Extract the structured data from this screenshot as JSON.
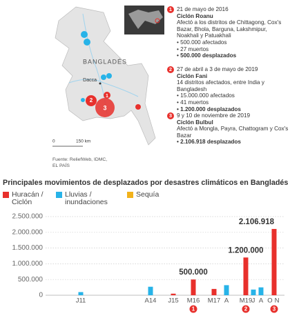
{
  "map": {
    "country_label": "BANGLADÉS",
    "city_label": "Dacca",
    "scale_zero": "0",
    "scale_label": "150 km",
    "source": "Fuente: ReliefWeb, IDMC, EL PAÍS"
  },
  "events": [
    {
      "number": "1",
      "date": "21 de mayo de 2016",
      "name": "Ciclón Roanu",
      "description": "Afectó a los distritos de Chittagong, Cox's Bazar, Bhola, Barguna, Lakshmipur, Noakhali y Patuakhali",
      "bullets": [
        "• 500.000 afectados",
        "• 27 muertos"
      ],
      "displaced": "• 500.000 desplazados"
    },
    {
      "number": "2",
      "date": "27 de abril a 3 de mayo de 2019",
      "name": "Ciclón Fani",
      "description": "14 distritos afectados, entre India y Bangladesh",
      "bullets": [
        "• 15.000.000 afectados",
        "• 41 muertos"
      ],
      "displaced": "• 1.200.000 desplazados"
    },
    {
      "number": "3",
      "date": "9 y 10 de noviembre de 2019",
      "name": "Ciclón Bulbul",
      "description": "Afectó a Mongla, Payra, Chattogram y Cox's Bazar",
      "bullets": [],
      "displaced": "• 2.106.918 desplazados"
    }
  ],
  "chart_data": {
    "type": "bar",
    "title": "Principales movimientos de desplazados por desastres climáticos en Bangladés",
    "categories": [
      "J11",
      "A14",
      "J15",
      "M16",
      "M17",
      "A",
      "M19",
      "J",
      "A",
      "O",
      "N"
    ],
    "series": [
      {
        "name": "Huracán / Ciclón",
        "color": "#e8302c",
        "values": [
          null,
          null,
          50000,
          500000,
          200000,
          null,
          1200000,
          null,
          null,
          null,
          2106918
        ],
        "value_labels": [
          null,
          null,
          null,
          "500.000",
          null,
          null,
          "1.200.000",
          null,
          null,
          null,
          "2.106.918"
        ]
      },
      {
        "name": "Lluvias / inundaciones",
        "color": "#27b3e8",
        "values": [
          100000,
          270000,
          null,
          null,
          null,
          320000,
          null,
          180000,
          250000,
          null,
          null
        ]
      },
      {
        "name": "Sequía",
        "color": "#f2b21b",
        "values": [
          null,
          null,
          null,
          null,
          null,
          null,
          null,
          null,
          null,
          null,
          null
        ]
      }
    ],
    "ylim": [
      0,
      2500000
    ],
    "yticks": [
      0,
      {
        "value": 500000,
        "label": "500.000"
      },
      {
        "value": 1000000,
        "label": "1.000.000"
      },
      {
        "value": 1500000,
        "label": "1.500.000"
      },
      {
        "value": 2000000,
        "label": "2.000.000"
      },
      {
        "value": 2500000,
        "label": "2.500.000"
      }
    ],
    "grid": true
  }
}
